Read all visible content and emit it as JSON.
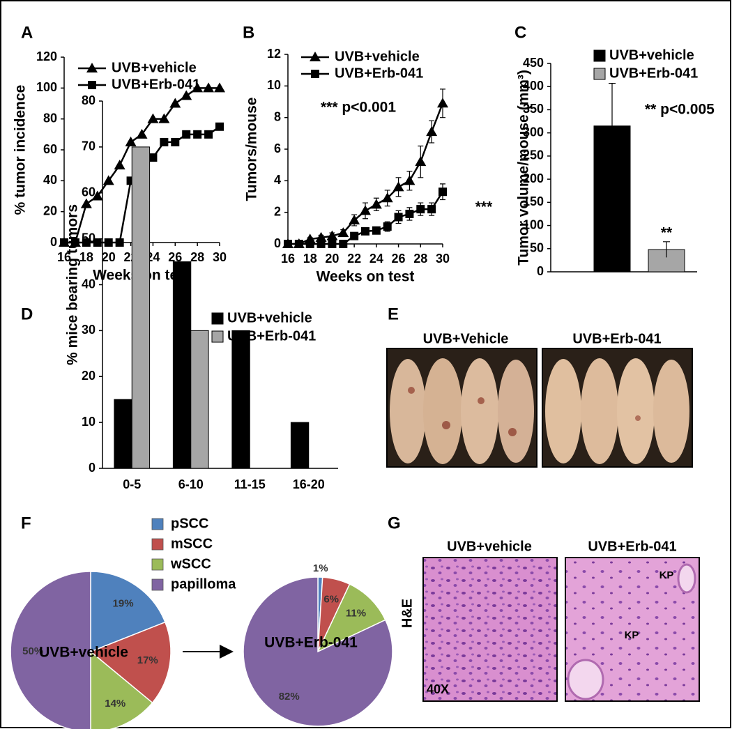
{
  "chart_data": [
    {
      "type": "line",
      "label": "A",
      "xlabel": "Weeks on test",
      "ylabel": "% tumor incidence",
      "x": [
        16,
        17,
        18,
        19,
        20,
        21,
        22,
        23,
        24,
        25,
        26,
        27,
        28,
        29,
        30
      ],
      "xlim": [
        16,
        30
      ],
      "xticks": [
        16,
        18,
        20,
        22,
        24,
        26,
        28,
        30
      ],
      "ylim": [
        0,
        120
      ],
      "yticks": [
        0,
        20,
        40,
        60,
        80,
        100,
        120
      ],
      "legend": "upper left",
      "series": [
        {
          "name": "UVB+vehicle",
          "color": "#000000",
          "marker": "triangle",
          "values": [
            0,
            0,
            25,
            30,
            40,
            50,
            65,
            70,
            80,
            80,
            90,
            95,
            100,
            100,
            100
          ]
        },
        {
          "name": "UVB+Erb-041",
          "color": "#000000",
          "marker": "square",
          "values": [
            0,
            0,
            0,
            0,
            0,
            0,
            40,
            55,
            55,
            65,
            65,
            70,
            70,
            70,
            75
          ]
        }
      ]
    },
    {
      "type": "line",
      "label": "B",
      "xlabel": "Weeks on test",
      "ylabel": "Tumors/mouse",
      "x": [
        16,
        17,
        18,
        19,
        20,
        21,
        22,
        23,
        24,
        25,
        26,
        27,
        28,
        29,
        30
      ],
      "xlim": [
        16,
        30
      ],
      "xticks": [
        16,
        18,
        20,
        22,
        24,
        26,
        28,
        30
      ],
      "ylim": [
        0,
        12
      ],
      "yticks": [
        0,
        2,
        4,
        6,
        8,
        10,
        12
      ],
      "legend": "upper left",
      "annotations": [
        "*** p<0.001",
        "***"
      ],
      "series": [
        {
          "name": "UVB+vehicle",
          "color": "#000000",
          "marker": "triangle",
          "values": [
            0,
            0,
            0.3,
            0.4,
            0.5,
            0.7,
            1.5,
            2.1,
            2.5,
            2.9,
            3.6,
            4.0,
            5.2,
            7.1,
            8.9
          ],
          "errors": [
            0,
            0,
            0.1,
            0.15,
            0.2,
            0.2,
            0.35,
            0.5,
            0.4,
            0.5,
            0.6,
            0.6,
            1.0,
            0.7,
            0.9
          ]
        },
        {
          "name": "UVB+Erb-041",
          "color": "#000000",
          "marker": "square",
          "values": [
            0,
            0,
            0,
            0,
            0,
            0,
            0.5,
            0.8,
            0.85,
            1.1,
            1.7,
            1.9,
            2.2,
            2.2,
            3.3
          ],
          "errors": [
            0,
            0,
            0,
            0,
            0,
            0,
            0.15,
            0.2,
            0.2,
            0.3,
            0.4,
            0.4,
            0.4,
            0.4,
            0.5
          ]
        }
      ]
    },
    {
      "type": "bar",
      "label": "C",
      "ylabel": "Tumor volume/mouse (mm³)",
      "ylim": [
        0,
        450
      ],
      "yticks": [
        0,
        50,
        100,
        150,
        200,
        250,
        300,
        350,
        400,
        450
      ],
      "legend": "upper right",
      "annotations": [
        "** p<0.005",
        "**"
      ],
      "series": [
        {
          "name": "UVB+vehicle",
          "color": "#000000",
          "values": [
            315
          ],
          "errors": [
            92
          ]
        },
        {
          "name": "UVB+Erb-041",
          "color": "#a6a6a6",
          "values": [
            48
          ],
          "errors": [
            17
          ]
        }
      ]
    },
    {
      "type": "bar",
      "label": "D",
      "ylabel": "% mice bearing tumors",
      "categories": [
        "0-5",
        "6-10",
        "11-15",
        "16-20"
      ],
      "ylim": [
        0,
        80
      ],
      "yticks": [
        0,
        10,
        20,
        30,
        40,
        50,
        60,
        70,
        80
      ],
      "legend": "upper right",
      "series": [
        {
          "name": "UVB+vehicle",
          "color": "#000000",
          "values": [
            15,
            45,
            30,
            10
          ]
        },
        {
          "name": "UVB+Erb-041",
          "color": "#a6a6a6",
          "values": [
            70,
            30,
            0,
            0
          ]
        }
      ]
    },
    {
      "type": "pie",
      "label": "F",
      "center_label": "UVB+vehicle",
      "categories": [
        "pSCC",
        "mSCC",
        "wSCC",
        "papilloma"
      ],
      "colors": [
        "#4f81bd",
        "#c0504d",
        "#9bbb59",
        "#8064a2"
      ],
      "values": [
        19,
        17,
        14,
        50
      ],
      "value_labels": [
        "19%",
        "17%",
        "14%",
        "50%"
      ]
    },
    {
      "type": "pie",
      "center_label": "UVB+Erb-041",
      "colors": [
        "#4f81bd",
        "#c0504d",
        "#9bbb59",
        "#8064a2"
      ],
      "values": [
        1,
        6,
        11,
        82
      ],
      "value_labels": [
        "1%",
        "6%",
        "11%",
        "82%"
      ]
    }
  ],
  "photos": {
    "label": "E",
    "captions": [
      "UVB+Vehicle",
      "UVB+Erb-041"
    ]
  },
  "micrographs": {
    "label": "G",
    "captions": [
      "UVB+vehicle",
      "UVB+Erb-041"
    ],
    "stain": "H&E",
    "magnification": "40X",
    "markers": [
      "KP",
      "KP"
    ]
  }
}
